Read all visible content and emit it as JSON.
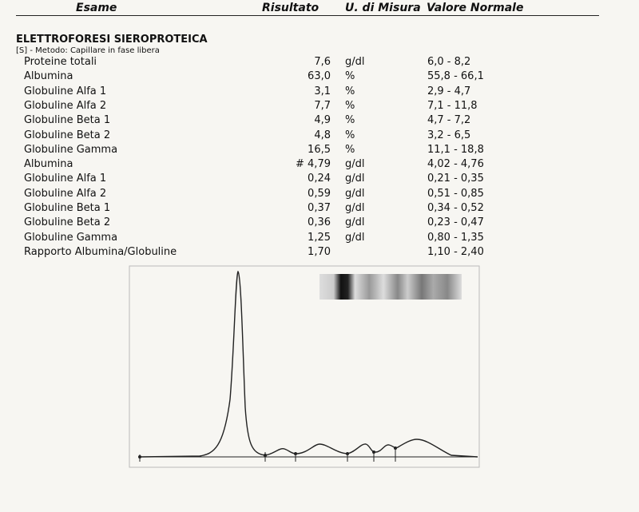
{
  "header": {
    "columns": [
      "Esame",
      "Risultato",
      "U. di Misura",
      "Valore Normale"
    ]
  },
  "section": {
    "title": "ELETTROFORESI SIEROPROTEICA",
    "method": "[S] - Metodo: Capillare in fase libera"
  },
  "table": {
    "rows": [
      {
        "name": "Proteine totali",
        "result": "7,6",
        "unit": "g/dl",
        "range": "6,0 - 8,2"
      },
      {
        "name": "Albumina",
        "result": "63,0",
        "unit": "%",
        "range": "55,8 - 66,1"
      },
      {
        "name": "Globuline Alfa 1",
        "result": "3,1",
        "unit": "%",
        "range": "2,9 - 4,7"
      },
      {
        "name": "Globuline Alfa 2",
        "result": "7,7",
        "unit": "%",
        "range": "7,1 - 11,8"
      },
      {
        "name": "Globuline Beta 1",
        "result": "4,9",
        "unit": "%",
        "range": "4,7 - 7,2"
      },
      {
        "name": "Globuline Beta 2",
        "result": "4,8",
        "unit": "%",
        "range": "3,2 - 6,5"
      },
      {
        "name": "Globuline Gamma",
        "result": "16,5",
        "unit": "%",
        "range": "11,1 - 18,8"
      },
      {
        "name": "Albumina",
        "result": "# 4,79",
        "unit": "g/dl",
        "range": "4,02 - 4,76"
      },
      {
        "name": "Globuline Alfa 1",
        "result": "0,24",
        "unit": "g/dl",
        "range": "0,21 - 0,35"
      },
      {
        "name": "Globuline Alfa 2",
        "result": "0,59",
        "unit": "g/dl",
        "range": "0,51 - 0,85"
      },
      {
        "name": "Globuline Beta 1",
        "result": "0,37",
        "unit": "g/dl",
        "range": "0,34 - 0,52"
      },
      {
        "name": "Globuline Beta 2",
        "result": "0,36",
        "unit": "g/dl",
        "range": "0,23 - 0,47"
      },
      {
        "name": "Globuline Gamma",
        "result": "1,25",
        "unit": "g/dl",
        "range": "0,80 - 1,35"
      },
      {
        "name": "Rapporto Albumina/Globuline",
        "result": "1,70",
        "range": "1,10 - 2,40"
      }
    ]
  }
}
